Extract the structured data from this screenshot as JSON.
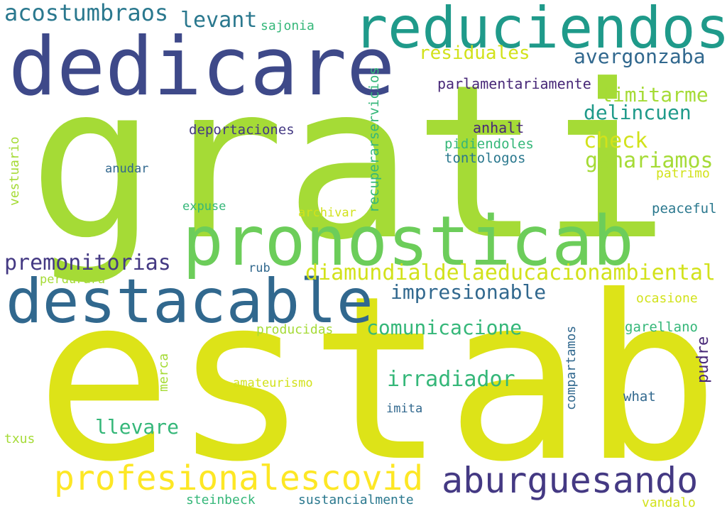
{
  "colors": {
    "background": "#ffffff",
    "navy": "#3e4989",
    "teal": "#1f9a8a",
    "teal_dark": "#26828e",
    "blue": "#31688e",
    "lime": "#a5db36",
    "green": "#6ccd5a",
    "yellow": "#dde318",
    "yellow_pale": "#d2e21b",
    "indigo": "#443983",
    "purple": "#482878",
    "aqua_green": "#35b779",
    "sea": "#2a788e",
    "yellow_bright": "#fde725"
  },
  "words": {
    "grati": "grati",
    "estab": "estab",
    "dedicare": "dedicare",
    "reduciendose": "reduciendose",
    "pronosticab": "pronosticab",
    "destacable": "destacable",
    "profesionalescovid": "profesionalescovid",
    "aburguesando": "aburguesando",
    "diamundial": "diamundialdelaeducacionambiental",
    "acostumbraos": "acostumbraos",
    "levant": "levant",
    "sajonia": "sajonia",
    "residuales": "residuales",
    "avergonzaba": "avergonzaba",
    "parlamentariamente": "parlamentariamente",
    "limitarme": "limitarme",
    "delincuen": "delincuen",
    "check": "check",
    "ganariamos": "ganariamos",
    "anhalt": "anhalt",
    "pidiendoles": "pidiendoles",
    "tontologos": "tontologos",
    "patrimo": "patrimo",
    "peaceful": "peaceful",
    "deportaciones": "deportaciones",
    "anudar": "anudar",
    "expuse": "expuse",
    "archivar": "archivar",
    "recuperarservicios": "recuperarservicios",
    "vestuario": "vestuario",
    "premonitorias": "premonitorias",
    "rub": "rub",
    "perdurara": "perdurara",
    "impresionable": "impresionable",
    "comunicacione": "comunicacione",
    "producidas": "producidas",
    "ocasione": "ocasione",
    "garellano": "garellano",
    "compartamos": "compartamos",
    "pudre": "pudre",
    "irradiador": "irradiador",
    "merca": "merca",
    "amateurismo": "amateurismo",
    "what": "what",
    "imita": "imita",
    "llevare": "llevare",
    "txus": "txus",
    "steinbeck": "steinbeck",
    "sustancialmente": "sustancialmente",
    "vandalo": "vandalo"
  }
}
